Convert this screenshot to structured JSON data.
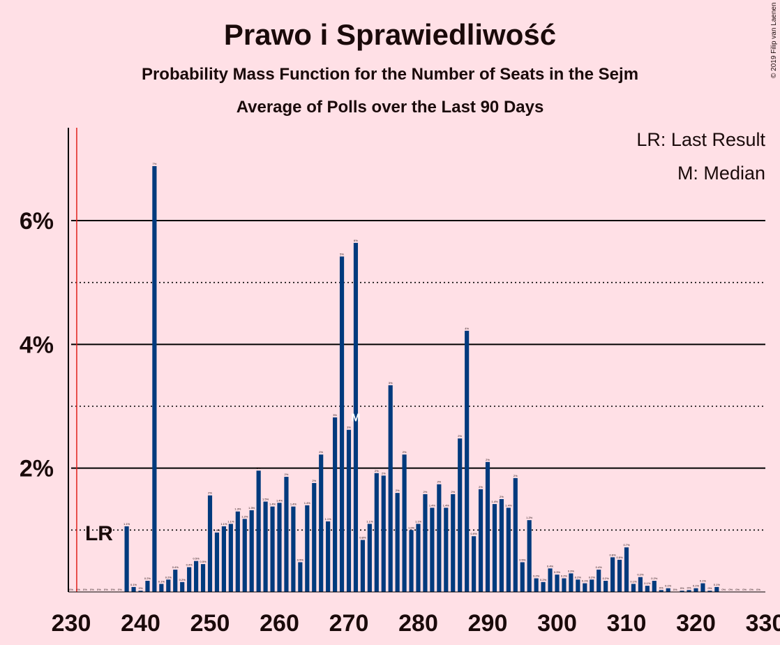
{
  "chart_data": {
    "type": "bar",
    "title": "Prawo i Sprawiedliwość",
    "subtitle": "Probability Mass Function for the Number of Seats in the Sejm",
    "subtitle2": "Average of Polls over the Last 90 Days",
    "copyright": "© 2019 Filip van Laenen",
    "legend": {
      "position": "top-right",
      "lr": "LR: Last Result",
      "m": "M: Median"
    },
    "last_result": {
      "seat": 231,
      "label": "LR"
    },
    "median": {
      "seat": 271,
      "label": "M"
    },
    "xlim": [
      230,
      330
    ],
    "ylim": [
      0,
      7.5
    ],
    "x_ticks": [
      230,
      240,
      250,
      260,
      270,
      280,
      290,
      300,
      310,
      320,
      330
    ],
    "y_ticks": [
      {
        "value": 2,
        "label": "2%"
      },
      {
        "value": 4,
        "label": "4%"
      },
      {
        "value": 6,
        "label": "6%"
      }
    ],
    "grid_solid": [
      2,
      4,
      6
    ],
    "grid_dotted": [
      1,
      3,
      5
    ],
    "bar_color": "#003a7d",
    "lr_line_color": "#e0201a",
    "seats": [
      230,
      231,
      232,
      233,
      234,
      235,
      236,
      237,
      238,
      239,
      240,
      241,
      242,
      243,
      244,
      245,
      246,
      247,
      248,
      249,
      250,
      251,
      252,
      253,
      254,
      255,
      256,
      257,
      258,
      259,
      260,
      261,
      262,
      263,
      264,
      265,
      266,
      267,
      268,
      269,
      270,
      271,
      272,
      273,
      274,
      275,
      276,
      277,
      278,
      279,
      280,
      281,
      282,
      283,
      284,
      285,
      286,
      287,
      288,
      289,
      290,
      291,
      292,
      293,
      294,
      295,
      296,
      297,
      298,
      299,
      300,
      301,
      302,
      303,
      304,
      305,
      306,
      307,
      308,
      309,
      310,
      311,
      312,
      313,
      314,
      315,
      316,
      317,
      318,
      319,
      320,
      321,
      322,
      323,
      324,
      325,
      326,
      327,
      328,
      329
    ],
    "values": [
      0,
      0,
      0,
      0,
      0,
      0,
      0,
      0,
      1.06,
      0.08,
      0.02,
      0.18,
      6.88,
      0.13,
      0.2,
      0.36,
      0.16,
      0.4,
      0.5,
      0.45,
      1.56,
      0.96,
      1.06,
      1.1,
      1.3,
      1.18,
      1.32,
      1.96,
      1.46,
      1.38,
      1.44,
      1.86,
      1.38,
      0.48,
      1.4,
      1.76,
      2.22,
      1.14,
      2.82,
      5.42,
      2.62,
      5.64,
      0.84,
      1.1,
      1.92,
      1.88,
      3.34,
      1.6,
      2.22,
      1.0,
      1.1,
      1.58,
      1.36,
      1.74,
      1.36,
      1.58,
      2.48,
      4.22,
      0.9,
      1.66,
      2.1,
      1.42,
      1.5,
      1.36,
      1.84,
      0.48,
      1.16,
      0.22,
      0.16,
      0.38,
      0.28,
      0.22,
      0.3,
      0.2,
      0.14,
      0.2,
      0.36,
      0.18,
      0.56,
      0.52,
      0.72,
      0.13,
      0.24,
      0.1,
      0.18,
      0.03,
      0.06,
      0,
      0.02,
      0.03,
      0.06,
      0.14,
      0.02,
      0.08,
      0,
      0,
      0,
      0,
      0,
      0
    ],
    "labels": [
      "0%",
      "0%",
      "0%",
      "0%",
      "0%",
      "0%",
      "0%",
      "0%",
      "1.1%",
      "0.1%",
      "0%",
      "0.2%",
      "7%",
      "0.1%",
      "0.2%",
      "0.4%",
      "0.2%",
      "0.4%",
      "0.5%",
      "0.5%",
      "2%",
      "1.0%",
      "1.1%",
      "1.1%",
      "1.3%",
      "1.2%",
      "1.3%",
      "2%",
      "1.5%",
      "1.4%",
      "1.4%",
      "2%",
      "1.4%",
      "0.5%",
      "1.4%",
      "2%",
      "2%",
      "1.1%",
      "3%",
      "5%",
      "3%",
      "6%",
      "0.8%",
      "1.1%",
      "2%",
      "2%",
      "3%",
      "2%",
      "2%",
      "1.0%",
      "1.1%",
      "2%",
      "1.4%",
      "2%",
      "1.4%",
      "2%",
      "2%",
      "4%",
      "0.9%",
      "2%",
      "2%",
      "1.4%",
      "2%",
      "1.4%",
      "2%",
      "0.5%",
      "1.2%",
      "0.2%",
      "0.2%",
      "0.4%",
      "0.3%",
      "0.2%",
      "0.3%",
      "0.2%",
      "0.1%",
      "0.2%",
      "0.4%",
      "0.2%",
      "0.6%",
      "0.5%",
      "0.7%",
      "0.1%",
      "0.2%",
      "0.1%",
      "0.2%",
      "0%",
      "0.1%",
      "0%",
      "0%",
      "0%",
      "0.1%",
      "0.1%",
      "0%",
      "0.1%",
      "0%",
      "0%",
      "0%",
      "0%",
      "0%",
      "0%"
    ]
  }
}
